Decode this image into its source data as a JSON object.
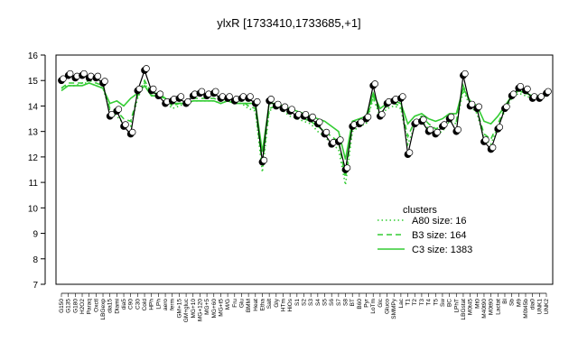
{
  "chart_data": {
    "type": "line",
    "title": "ylxR [1733410,1733685,+1]",
    "xlabel": "",
    "ylabel": "",
    "ylim": [
      7,
      16
    ],
    "yticks": [
      7,
      8,
      9,
      10,
      11,
      12,
      13,
      14,
      15,
      16
    ],
    "grid": false,
    "legend_position": "right",
    "legend_title": "clusters",
    "categories": [
      "G150",
      "G135",
      "G180",
      "H2O2",
      "Paraq",
      "Oxctl",
      "LBGexp",
      "dia15",
      "Diami",
      "dia5",
      "C90",
      "C30",
      "Cold",
      "HPh",
      "LPh",
      "aero",
      "ferm",
      "GM+15",
      "GM+gluc",
      "MG+10",
      "MG+120",
      "MG+5",
      "MG+60",
      "MG+t5",
      "M/G",
      "Fru",
      "Glu",
      "BMM",
      "Heat",
      "Etha",
      "Salt",
      "Gly",
      "HTm",
      "HiOs",
      "S1",
      "S2",
      "S3",
      "S4",
      "S5",
      "S6",
      "S7",
      "S8",
      "BT",
      "B60",
      "Pyr",
      "LoTm",
      "Glc",
      "Gluco",
      "SMMPy",
      "Lac",
      "T1",
      "T2",
      "T3",
      "T4",
      "T5",
      "Sw",
      "BC",
      "LPhT",
      "LBGstat",
      "M0t45",
      "Mt0",
      "M40t90",
      "M0t90",
      "Lactat",
      "Bl",
      "Sb",
      "M9",
      "M0t45b",
      "dia0",
      "UNK1",
      "UNK2"
    ],
    "series": [
      {
        "name": "A80 size: 16",
        "color": "#33cc33",
        "dash": "dotted",
        "values": [
          14.7,
          14.8,
          14.8,
          14.9,
          14.9,
          14.8,
          14.7,
          13.8,
          13.6,
          13.3,
          13.2,
          14.3,
          14.9,
          14.4,
          14.5,
          14.2,
          13.9,
          14.0,
          14.1,
          14.2,
          14.2,
          14.2,
          14.2,
          14.1,
          14.2,
          14.1,
          14.1,
          13.9,
          13.8,
          11.4,
          13.8,
          14.0,
          13.8,
          13.6,
          13.5,
          13.4,
          13.3,
          13.0,
          12.8,
          12.5,
          12.3,
          10.9,
          13.0,
          13.2,
          13.3,
          14.3,
          13.6,
          13.9,
          14.0,
          13.9,
          12.5,
          13.2,
          13.4,
          13.1,
          12.9,
          13.0,
          13.4,
          13.3,
          14.6,
          14.0,
          13.7,
          12.7,
          12.5,
          13.2,
          13.8,
          14.3,
          14.5,
          14.4,
          14.3,
          14.3,
          14.4
        ]
      },
      {
        "name": "B3 size: 164",
        "color": "#33cc33",
        "dash": "dashed",
        "values": [
          14.7,
          14.9,
          14.9,
          14.9,
          15.0,
          14.9,
          14.8,
          13.9,
          13.8,
          13.5,
          13.4,
          14.4,
          15.0,
          14.5,
          14.5,
          14.3,
          14.0,
          14.1,
          14.2,
          14.3,
          14.3,
          14.3,
          14.3,
          14.2,
          14.3,
          14.2,
          14.2,
          14.0,
          13.9,
          11.7,
          13.9,
          14.0,
          13.9,
          13.7,
          13.6,
          13.5,
          13.4,
          13.2,
          13.0,
          12.8,
          12.6,
          11.2,
          13.2,
          13.3,
          13.4,
          14.4,
          13.7,
          14.0,
          14.1,
          14.0,
          12.8,
          13.4,
          13.6,
          13.3,
          13.1,
          13.2,
          13.5,
          13.4,
          14.8,
          14.1,
          13.8,
          12.9,
          12.7,
          13.3,
          13.9,
          14.4,
          14.6,
          14.5,
          14.4,
          14.4,
          14.5
        ]
      },
      {
        "name": "C3 size: 1383",
        "color": "#33cc33",
        "dash": "solid",
        "values": [
          14.6,
          14.8,
          14.8,
          14.8,
          14.9,
          14.8,
          14.7,
          14.1,
          14.2,
          14.0,
          14.3,
          14.5,
          14.8,
          14.4,
          14.4,
          14.3,
          14.1,
          14.1,
          14.1,
          14.2,
          14.2,
          14.2,
          14.2,
          14.1,
          14.2,
          14.1,
          14.1,
          14.1,
          14.1,
          12.2,
          14.1,
          14.1,
          14.0,
          13.9,
          13.8,
          13.7,
          13.6,
          13.5,
          13.4,
          13.2,
          13.0,
          11.9,
          13.4,
          13.5,
          13.6,
          14.5,
          13.9,
          14.1,
          14.2,
          14.1,
          13.3,
          13.6,
          13.7,
          13.5,
          13.4,
          13.5,
          13.7,
          13.7,
          14.7,
          14.2,
          14.0,
          13.4,
          13.3,
          13.6,
          14.0,
          14.4,
          14.6,
          14.5,
          14.4,
          14.4,
          14.5
        ]
      },
      {
        "name": "ylxR",
        "color": "#000000",
        "dash": "solid",
        "markers": true,
        "values": [
          15.0,
          15.2,
          15.1,
          15.2,
          15.1,
          15.1,
          14.9,
          13.6,
          13.8,
          13.2,
          12.9,
          14.6,
          15.4,
          14.6,
          14.4,
          14.1,
          14.2,
          14.3,
          14.1,
          14.4,
          14.5,
          14.4,
          14.5,
          14.3,
          14.3,
          14.2,
          14.3,
          14.3,
          14.1,
          11.8,
          14.2,
          14.0,
          13.9,
          13.8,
          13.6,
          13.6,
          13.5,
          13.3,
          12.9,
          12.5,
          12.6,
          11.5,
          13.2,
          13.3,
          13.5,
          14.8,
          13.6,
          14.1,
          14.2,
          14.3,
          12.1,
          13.3,
          13.4,
          13.0,
          12.9,
          13.2,
          13.5,
          13.0,
          15.2,
          14.0,
          13.9,
          12.6,
          12.3,
          13.1,
          13.9,
          14.4,
          14.7,
          14.6,
          14.3,
          14.3,
          14.5
        ]
      }
    ]
  }
}
